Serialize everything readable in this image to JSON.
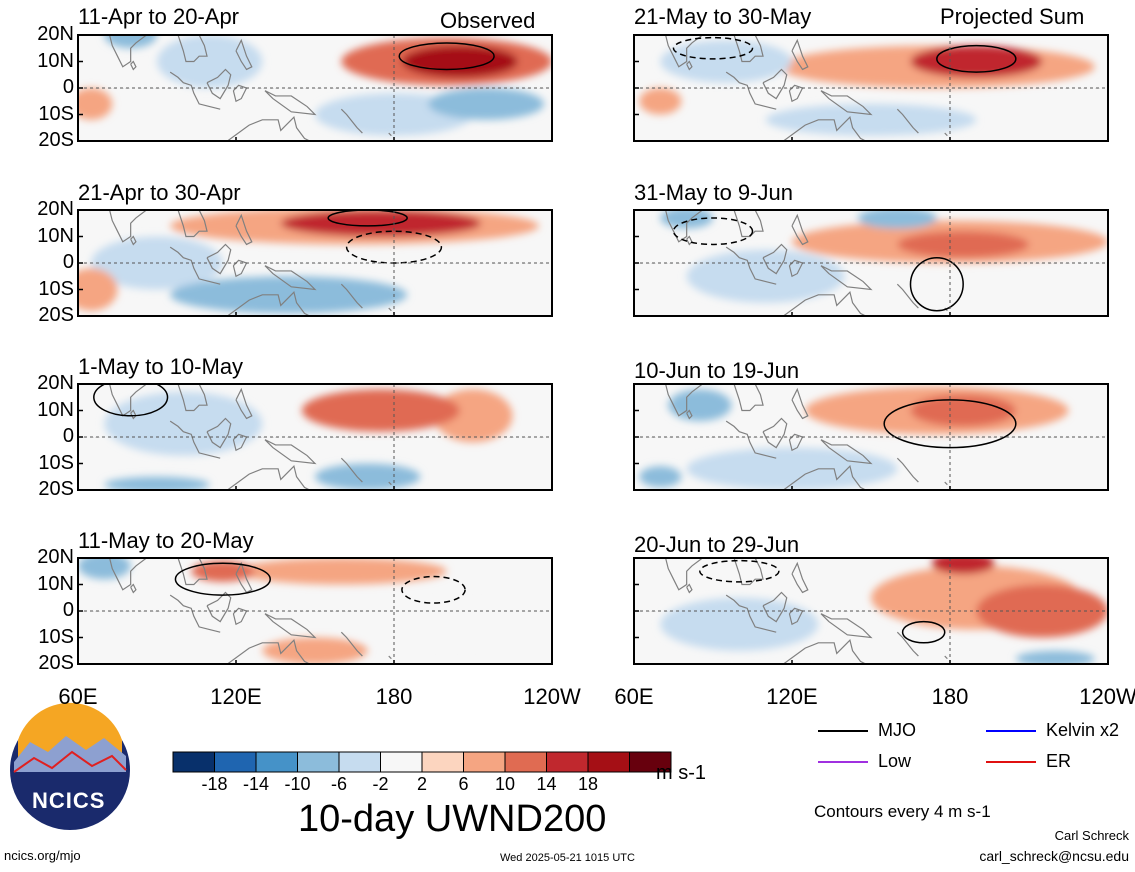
{
  "figure": {
    "title": "10-day UWND200",
    "units": "m s-1",
    "contour_note": "Contours every 4 m s-1",
    "footer_left": "ncics.org/mjo",
    "footer_center": "Wed 2025-05-21 1015 UTC",
    "author": "Carl Schreck",
    "email": "carl_schreck@ncsu.edu",
    "logo_text": "NCICS",
    "tag_observed": "Observed",
    "tag_projected": "Projected Sum"
  },
  "colors": {
    "levels": [
      "#08306b",
      "#1f65b0",
      "#4592c8",
      "#8cbcdb",
      "#c6dcef",
      "#f7f7f7",
      "#fcd5bf",
      "#f5a582",
      "#e06b52",
      "#c0282e",
      "#a50f15",
      "#67000d"
    ],
    "contour": "#000000",
    "coast": "#808080"
  },
  "colorbar": {
    "tick_labels": [
      "-18",
      "-14",
      "-10",
      "-6",
      "-2",
      "2",
      "6",
      "10",
      "14",
      "18"
    ]
  },
  "legend": [
    {
      "label": "MJO",
      "color": "#000000"
    },
    {
      "label": "Kelvin x2",
      "color": "#0000ff"
    },
    {
      "label": "Low",
      "color": "#a030e0"
    },
    {
      "label": "ER",
      "color": "#e01010"
    }
  ],
  "chart_data": [
    {
      "type": "heatmap",
      "title": "11-Apr to 20-Apr",
      "ytick_labels": [
        "20N",
        "10N",
        "0",
        "10S",
        "20S"
      ],
      "xtick_labels": [],
      "x_range": [
        "60E",
        "120W"
      ],
      "y_range": [
        "20S",
        "20N"
      ],
      "features": [
        {
          "kind": "fill",
          "lon": 205,
          "lat": 10,
          "value": 18,
          "rlon": 22,
          "rlat": 6
        },
        {
          "kind": "fill",
          "lon": 200,
          "lat": 10,
          "value": 10,
          "rlon": 40,
          "rlat": 9
        },
        {
          "kind": "fill",
          "lon": 80,
          "lat": 20,
          "value": -10,
          "rlon": 10,
          "rlat": 5
        },
        {
          "kind": "fill",
          "lon": 215,
          "lat": -6,
          "value": -10,
          "rlon": 22,
          "rlat": 6
        },
        {
          "kind": "fill",
          "lon": 180,
          "lat": -10,
          "value": -6,
          "rlon": 30,
          "rlat": 8
        },
        {
          "kind": "fill",
          "lon": 110,
          "lat": 10,
          "value": -6,
          "rlon": 20,
          "rlat": 10
        },
        {
          "kind": "fill",
          "lon": 65,
          "lat": -6,
          "value": 6,
          "rlon": 8,
          "rlat": 6
        },
        {
          "kind": "contour",
          "lon": 200,
          "lat": 12,
          "rlon": 18,
          "rlat": 5,
          "dash": false
        }
      ]
    },
    {
      "type": "heatmap",
      "title": "21-Apr to 30-Apr",
      "ytick_labels": [
        "20N",
        "10N",
        "0",
        "10S",
        "20S"
      ],
      "xtick_labels": [],
      "x_range": [
        "60E",
        "120W"
      ],
      "y_range": [
        "20S",
        "20N"
      ],
      "features": [
        {
          "kind": "fill",
          "lon": 175,
          "lat": 15,
          "value": 14,
          "rlon": 38,
          "rlat": 5
        },
        {
          "kind": "fill",
          "lon": 165,
          "lat": 14,
          "value": 6,
          "rlon": 70,
          "rlat": 7
        },
        {
          "kind": "fill",
          "lon": 140,
          "lat": -12,
          "value": -10,
          "rlon": 45,
          "rlat": 7
        },
        {
          "kind": "fill",
          "lon": 90,
          "lat": 0,
          "value": -6,
          "rlon": 25,
          "rlat": 10
        },
        {
          "kind": "fill",
          "lon": 65,
          "lat": -10,
          "value": 6,
          "rlon": 10,
          "rlat": 8
        },
        {
          "kind": "contour",
          "lon": 170,
          "lat": 17,
          "rlon": 15,
          "rlat": 3,
          "dash": false
        },
        {
          "kind": "contour",
          "lon": 180,
          "lat": 6,
          "rlon": 18,
          "rlat": 6,
          "dash": true
        }
      ]
    },
    {
      "type": "heatmap",
      "title": "1-May to 10-May",
      "ytick_labels": [
        "20N",
        "10N",
        "0",
        "10S",
        "20S"
      ],
      "xtick_labels": [],
      "x_range": [
        "60E",
        "120W"
      ],
      "y_range": [
        "20S",
        "20N"
      ],
      "features": [
        {
          "kind": "fill",
          "lon": 175,
          "lat": 10,
          "value": 10,
          "rlon": 30,
          "rlat": 8
        },
        {
          "kind": "fill",
          "lon": 210,
          "lat": 8,
          "value": 6,
          "rlon": 15,
          "rlat": 10
        },
        {
          "kind": "fill",
          "lon": 170,
          "lat": -15,
          "value": -10,
          "rlon": 20,
          "rlat": 5
        },
        {
          "kind": "fill",
          "lon": 100,
          "lat": 5,
          "value": -6,
          "rlon": 30,
          "rlat": 12
        },
        {
          "kind": "fill",
          "lon": 90,
          "lat": -18,
          "value": -10,
          "rlon": 20,
          "rlat": 3
        },
        {
          "kind": "contour",
          "lon": 80,
          "lat": 15,
          "rlon": 14,
          "rlat": 7,
          "dash": false
        }
      ]
    },
    {
      "type": "heatmap",
      "title": "11-May to 20-May",
      "ytick_labels": [
        "20N",
        "10N",
        "0",
        "10S",
        "20S"
      ],
      "xtick_labels": [
        "60E",
        "120E",
        "180",
        "120W"
      ],
      "x_range": [
        "60E",
        "120W"
      ],
      "y_range": [
        "20S",
        "20N"
      ],
      "features": [
        {
          "kind": "fill",
          "lon": 70,
          "lat": 17,
          "value": -10,
          "rlon": 10,
          "rlat": 5
        },
        {
          "kind": "fill",
          "lon": 115,
          "lat": 15,
          "value": 10,
          "rlon": 12,
          "rlat": 4
        },
        {
          "kind": "fill",
          "lon": 160,
          "lat": 15,
          "value": 6,
          "rlon": 40,
          "rlat": 5
        },
        {
          "kind": "fill",
          "lon": 150,
          "lat": -15,
          "value": 6,
          "rlon": 20,
          "rlat": 5
        },
        {
          "kind": "fill",
          "lon": 200,
          "lat": -5,
          "value": -2,
          "rlon": 40,
          "rlat": 8
        },
        {
          "kind": "contour",
          "lon": 115,
          "lat": 12,
          "rlon": 18,
          "rlat": 6,
          "dash": false
        },
        {
          "kind": "contour",
          "lon": 195,
          "lat": 8,
          "rlon": 12,
          "rlat": 5,
          "dash": true
        }
      ]
    },
    {
      "type": "heatmap",
      "title": "21-May to 30-May",
      "ytick_labels": [],
      "xtick_labels": [],
      "x_range": [
        "60E",
        "120W"
      ],
      "y_range": [
        "20S",
        "20N"
      ],
      "features": [
        {
          "kind": "fill",
          "lon": 190,
          "lat": 10,
          "value": 14,
          "rlon": 25,
          "rlat": 6
        },
        {
          "kind": "fill",
          "lon": 175,
          "lat": 8,
          "value": 6,
          "rlon": 60,
          "rlat": 8
        },
        {
          "kind": "fill",
          "lon": 95,
          "lat": 10,
          "value": -6,
          "rlon": 25,
          "rlat": 8
        },
        {
          "kind": "fill",
          "lon": 150,
          "lat": -12,
          "value": -6,
          "rlon": 40,
          "rlat": 6
        },
        {
          "kind": "fill",
          "lon": 70,
          "lat": -5,
          "value": 6,
          "rlon": 8,
          "rlat": 5
        },
        {
          "kind": "contour",
          "lon": 190,
          "lat": 11,
          "rlon": 15,
          "rlat": 5,
          "dash": false
        },
        {
          "kind": "contour",
          "lon": 90,
          "lat": 15,
          "rlon": 15,
          "rlat": 4,
          "dash": true
        }
      ]
    },
    {
      "type": "heatmap",
      "title": "31-May to 9-Jun",
      "ytick_labels": [],
      "xtick_labels": [],
      "x_range": [
        "60E",
        "120W"
      ],
      "y_range": [
        "20S",
        "20N"
      ],
      "features": [
        {
          "kind": "fill",
          "lon": 185,
          "lat": 7,
          "value": 10,
          "rlon": 25,
          "rlat": 5
        },
        {
          "kind": "fill",
          "lon": 180,
          "lat": 8,
          "value": 6,
          "rlon": 60,
          "rlat": 8
        },
        {
          "kind": "fill",
          "lon": 80,
          "lat": 17,
          "value": -10,
          "rlon": 10,
          "rlat": 4
        },
        {
          "kind": "fill",
          "lon": 160,
          "lat": 17,
          "value": -10,
          "rlon": 15,
          "rlat": 4
        },
        {
          "kind": "fill",
          "lon": 110,
          "lat": -5,
          "value": -6,
          "rlon": 30,
          "rlat": 10
        },
        {
          "kind": "contour",
          "lon": 175,
          "lat": -8,
          "rlon": 10,
          "rlat": 10,
          "dash": false
        },
        {
          "kind": "contour",
          "lon": 90,
          "lat": 12,
          "rlon": 15,
          "rlat": 5,
          "dash": true
        }
      ]
    },
    {
      "type": "heatmap",
      "title": "10-Jun to 19-Jun",
      "ytick_labels": [],
      "xtick_labels": [],
      "x_range": [
        "60E",
        "120W"
      ],
      "y_range": [
        "20S",
        "20N"
      ],
      "features": [
        {
          "kind": "fill",
          "lon": 185,
          "lat": 10,
          "value": 10,
          "rlon": 20,
          "rlat": 6
        },
        {
          "kind": "fill",
          "lon": 175,
          "lat": 10,
          "value": 6,
          "rlon": 50,
          "rlat": 9
        },
        {
          "kind": "fill",
          "lon": 85,
          "lat": 12,
          "value": -10,
          "rlon": 12,
          "rlat": 6
        },
        {
          "kind": "fill",
          "lon": 120,
          "lat": -12,
          "value": -6,
          "rlon": 40,
          "rlat": 8
        },
        {
          "kind": "fill",
          "lon": 70,
          "lat": -15,
          "value": -10,
          "rlon": 8,
          "rlat": 4
        },
        {
          "kind": "contour",
          "lon": 180,
          "lat": 5,
          "rlon": 25,
          "rlat": 9,
          "dash": false
        }
      ]
    },
    {
      "type": "heatmap",
      "title": "20-Jun to 29-Jun",
      "ytick_labels": [],
      "xtick_labels": [
        "60E",
        "120E",
        "180",
        "120W"
      ],
      "x_range": [
        "60E",
        "120W"
      ],
      "y_range": [
        "20S",
        "20N"
      ],
      "features": [
        {
          "kind": "fill",
          "lon": 185,
          "lat": 18,
          "value": 14,
          "rlon": 12,
          "rlat": 4
        },
        {
          "kind": "fill",
          "lon": 215,
          "lat": 0,
          "value": 10,
          "rlon": 25,
          "rlat": 10
        },
        {
          "kind": "fill",
          "lon": 190,
          "lat": 5,
          "value": 6,
          "rlon": 40,
          "rlat": 12
        },
        {
          "kind": "fill",
          "lon": 100,
          "lat": -5,
          "value": -6,
          "rlon": 30,
          "rlat": 10
        },
        {
          "kind": "fill",
          "lon": 220,
          "lat": -18,
          "value": -10,
          "rlon": 15,
          "rlat": 3
        },
        {
          "kind": "contour",
          "lon": 170,
          "lat": -8,
          "rlon": 8,
          "rlat": 4,
          "dash": false
        },
        {
          "kind": "contour",
          "lon": 100,
          "lat": 15,
          "rlon": 15,
          "rlat": 4,
          "dash": true
        }
      ]
    }
  ]
}
